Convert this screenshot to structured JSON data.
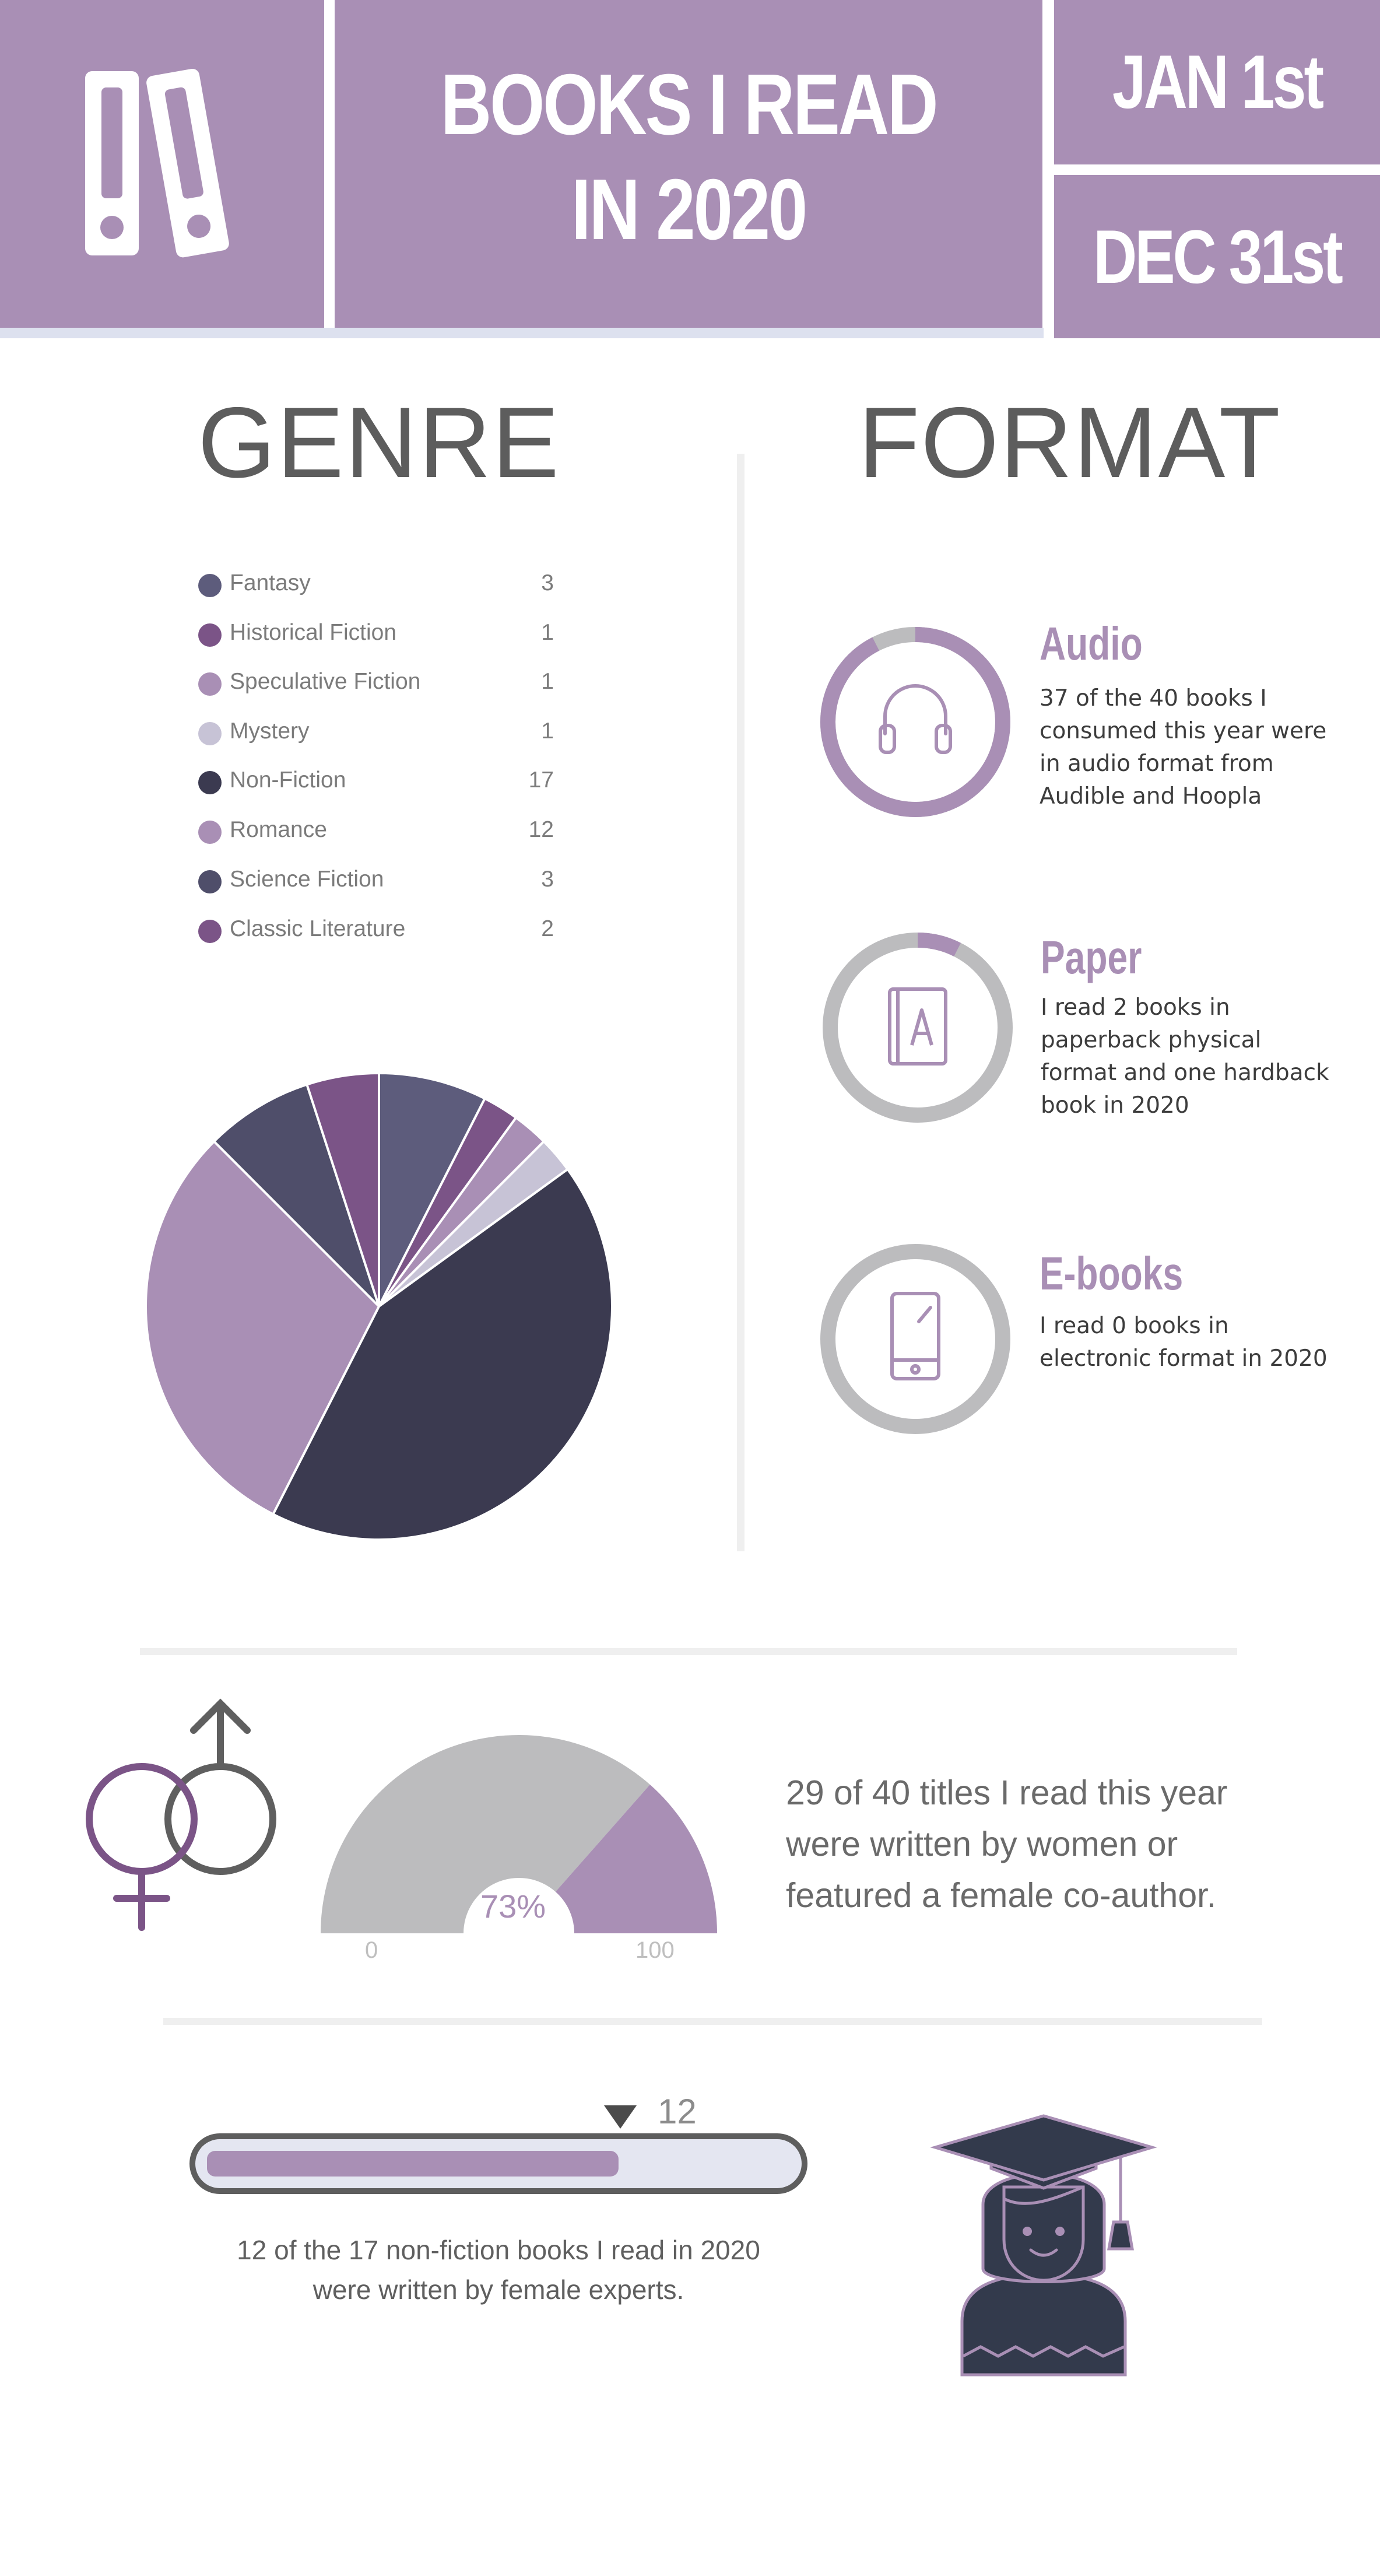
{
  "header": {
    "title_line1": "BOOKS I READ",
    "title_line2": "IN 2020",
    "start_date": "JAN 1st",
    "end_date": "DEC 31st",
    "icon": "binders-icon"
  },
  "colors": {
    "header_purple": "#a98fb5",
    "dark_slate": "#3b3a50",
    "slate_blue": "#5d5c7c",
    "plum": "#7b5487",
    "lavender": "#a98fb5",
    "pale_lavender": "#c7c3d6",
    "light_gray": "#bcbcbe"
  },
  "genre": {
    "title": "GENRE",
    "legend": [
      {
        "label": "Fantasy",
        "value": "3",
        "color": "#5d5c7c"
      },
      {
        "label": "Historical Fiction",
        "value": "1",
        "color": "#7b5487"
      },
      {
        "label": "Speculative Fiction",
        "value": "1",
        "color": "#a98fb5"
      },
      {
        "label": "Mystery",
        "value": "1",
        "color": "#c7c3d6"
      },
      {
        "label": "Non-Fiction",
        "value": "17",
        "color": "#3b3a50"
      },
      {
        "label": "Romance",
        "value": "12",
        "color": "#a98fb5"
      },
      {
        "label": "Science Fiction",
        "value": "3",
        "color": "#4f4e6a"
      },
      {
        "label": "Classic Literature",
        "value": "2",
        "color": "#7b5487"
      }
    ]
  },
  "format": {
    "title": "FORMAT",
    "items": [
      {
        "title": "Audio",
        "text_lines": [
          "37 of the 40 books I",
          "consumed this year were",
          "in audio format from",
          "Audible and Hoopla"
        ],
        "icon": "headphones-icon",
        "progress": 0.925
      },
      {
        "title": "Paper",
        "text_lines": [
          "I read 2 books in",
          "paperback physical",
          "format and one hardback",
          "book in 2020"
        ],
        "icon": "book-icon",
        "progress": 0.075
      },
      {
        "title": "E-books",
        "text_lines": [
          "I read 0 books in",
          "electronic format in 2020"
        ],
        "icon": "tablet-icon",
        "progress": 0
      }
    ]
  },
  "women": {
    "gauge_value_label": "73%",
    "gauge_min": "0",
    "gauge_max": "100",
    "note_lines": [
      "29 of 40 titles I read this year",
      "were written by women or",
      "featured a female co-author."
    ],
    "icon": "gender-symbols-icon"
  },
  "experts": {
    "marker_label": "12",
    "caption_lines": [
      "12 of the 17 non-fiction books I read in 2020",
      "were written by female experts."
    ],
    "icon": "graduate-icon"
  },
  "chart_data": [
    {
      "type": "pie",
      "title": "",
      "categories": [
        "Fantasy",
        "Historical Fiction",
        "Speculative Fiction",
        "Mystery",
        "Non-Fiction",
        "Romance",
        "Science Fiction",
        "Classic Literature"
      ],
      "values": [
        3,
        1,
        1,
        1,
        17,
        12,
        3,
        2
      ],
      "colors": [
        "#5d5c7c",
        "#7b5487",
        "#a98fb5",
        "#c7c3d6",
        "#3b3a50",
        "#a98fb5",
        "#4f4e6a",
        "#7b5487"
      ],
      "start_angle": "12 o'clock",
      "direction": "clockwise"
    },
    {
      "type": "gauge",
      "title": "",
      "value": 73,
      "range": [
        0,
        100
      ],
      "tick_labels": [
        "0",
        "100"
      ],
      "value_label": "73%"
    },
    {
      "type": "bar",
      "title": "",
      "value": 12,
      "max": 17,
      "marker_label": "12"
    }
  ]
}
